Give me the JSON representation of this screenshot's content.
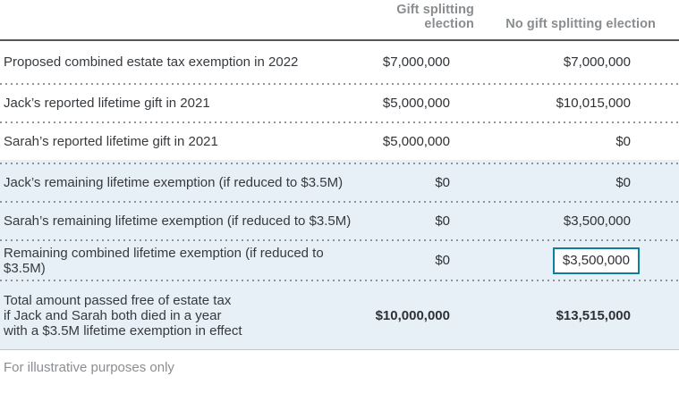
{
  "table": {
    "columns": [
      {
        "label": "Gift splitting election"
      },
      {
        "label": "No gift splitting election"
      }
    ],
    "rows": [
      {
        "label": "Proposed combined estate tax exemption in 2022",
        "gift": "$7,000,000",
        "no_gift": "$7,000,000"
      },
      {
        "label": "Jack’s reported lifetime gift in 2021",
        "gift": "$5,000,000",
        "no_gift": "$10,015,000"
      },
      {
        "label": "Sarah’s reported lifetime gift in 2021",
        "gift": "$5,000,000",
        "no_gift": "$0"
      },
      {
        "label": "Jack’s remaining lifetime exemption (if reduced to $3.5M)",
        "gift": "$0",
        "no_gift": "$0"
      },
      {
        "label": "Sarah’s remaining lifetime exemption (if reduced to $3.5M)",
        "gift": "$0",
        "no_gift": "$3,500,000"
      },
      {
        "label": "Remaining combined lifetime exemption (if reduced to $3.5M)",
        "gift": "$0",
        "no_gift": "$3,500,000",
        "highlighted_value": true
      },
      {
        "label_lines": [
          "Total amount passed free of estate tax",
          "if Jack and Sarah both died in a year",
          "with a $3.5M lifetime exemption in effect"
        ],
        "gift": "$10,000,000",
        "no_gift": "$13,515,000",
        "bold": true
      }
    ],
    "footnote": "For illustrative purposes only"
  },
  "colors": {
    "highlight_border": "#0d7e9e",
    "shaded_row_background": "#e7f0f7",
    "header_text": "#8a8d90",
    "header_rule": "#54585c",
    "body_text": "#363a3e",
    "footnote_text": "#8b8e92"
  }
}
